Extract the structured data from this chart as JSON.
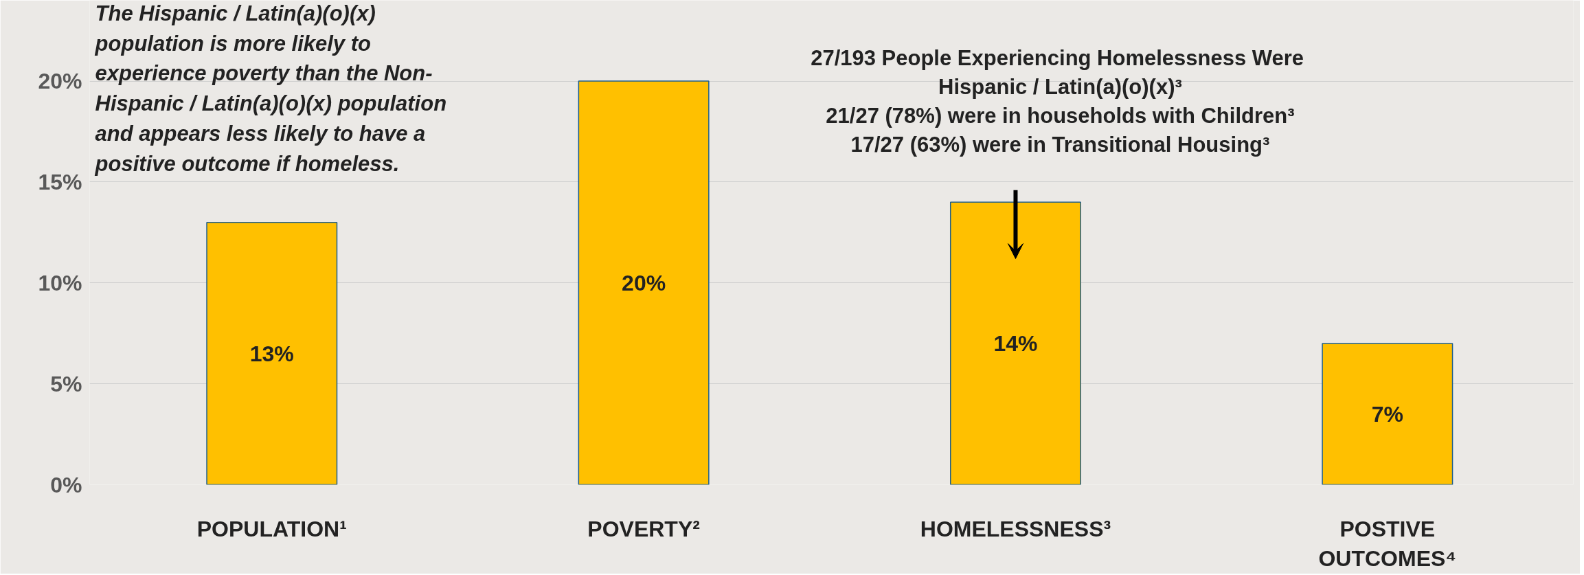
{
  "chart_data": {
    "type": "bar",
    "categories": [
      "POPULATION¹",
      "POVERTY²",
      "HOMELESSNESS³",
      "POSTIVE OUTCOMES⁴"
    ],
    "values": [
      13,
      20,
      14,
      7
    ],
    "value_labels": [
      "13%",
      "20%",
      "14%",
      "7%"
    ],
    "color": "#ffc000",
    "ylim": [
      0,
      24
    ],
    "yticks": [
      {
        "value": 0,
        "label": "0%"
      },
      {
        "value": 5,
        "label": "5%"
      },
      {
        "value": 10,
        "label": "10%"
      },
      {
        "value": 15,
        "label": "15%"
      },
      {
        "value": 20,
        "label": "20%"
      }
    ],
    "grid": "y",
    "annotations": [
      "The Hispanic / Latin(a)(o)(x) population is more likely to experience poverty than the Non-Hispanic / Latin(a)(o)(x) population and appears less likely to have a positive outcome if homeless.",
      "27/193  People Experiencing Homelessness Were Hispanic / Latin(a)(o)(x)³",
      "21/27 (78%) were in households with Children³",
      "17/27 (63%) were in Transitional Housing³"
    ]
  }
}
